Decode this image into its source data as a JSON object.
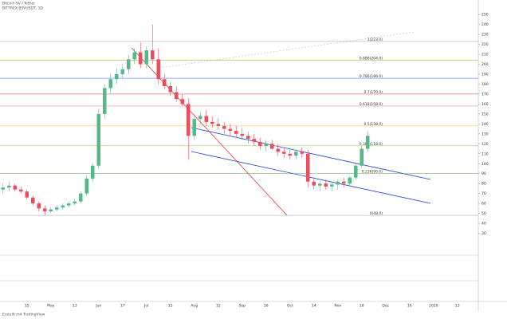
{
  "chart_data": {
    "type": "candlestick",
    "title": "BITTREX:BSVUSDT, 1D",
    "subtitle": "Bitcoin SV / Tether",
    "footer": "Erstellt mit TradingView",
    "up_color": "#53b987",
    "down_color": "#eb4d5c",
    "categories": [
      null,
      null,
      null,
      null,
      "15",
      null,
      null,
      null,
      "May",
      null,
      null,
      null,
      "13",
      null,
      null,
      null,
      "Jun",
      null,
      null,
      null,
      "17",
      null,
      null,
      null,
      "Jul",
      null,
      null,
      null,
      "15",
      null,
      null,
      null,
      "Aug",
      null,
      null,
      null,
      "12",
      null,
      null,
      null,
      "Sep",
      null,
      null,
      null,
      "16",
      null,
      null,
      null,
      "Oct",
      null,
      null,
      null,
      "14",
      null,
      null,
      null,
      "Nov",
      null,
      null,
      null,
      "18",
      null,
      null,
      null,
      "Dec",
      null,
      null,
      null,
      "16",
      null,
      null,
      null,
      "2020",
      null,
      null,
      null,
      "13",
      null,
      null,
      null
    ],
    "open": [
      74,
      76,
      78,
      74,
      72,
      66,
      60,
      55,
      52,
      54,
      56,
      58,
      60,
      62,
      70,
      85,
      98,
      150,
      176,
      185,
      190,
      195,
      205,
      212,
      200,
      214,
      205,
      185,
      178,
      172,
      165,
      160,
      128,
      145,
      148,
      142,
      140,
      138,
      135,
      133,
      130,
      128,
      125,
      122,
      118,
      120,
      115,
      112,
      110,
      108,
      112,
      110,
      82,
      78,
      80,
      77,
      79,
      82,
      80,
      86,
      98,
      115,
      null,
      null,
      null,
      null,
      null,
      null,
      null,
      null,
      null,
      null,
      null,
      null,
      null,
      null,
      null,
      null,
      null,
      null
    ],
    "high": [
      80,
      82,
      80,
      77,
      74,
      68,
      62,
      58,
      56,
      58,
      60,
      62,
      64,
      72,
      88,
      100,
      155,
      180,
      190,
      196,
      200,
      210,
      216,
      222,
      218,
      240,
      216,
      190,
      182,
      178,
      170,
      166,
      150,
      152,
      154,
      148,
      146,
      142,
      140,
      138,
      136,
      132,
      130,
      126,
      124,
      124,
      120,
      116,
      114,
      114,
      116,
      114,
      86,
      82,
      84,
      82,
      84,
      86,
      88,
      100,
      118,
      132,
      null,
      null,
      null,
      null,
      null,
      null,
      null,
      null,
      null,
      null,
      null,
      null,
      null,
      null,
      null,
      null,
      null,
      null
    ],
    "low": [
      70,
      72,
      72,
      70,
      64,
      58,
      52,
      48,
      50,
      52,
      54,
      56,
      58,
      60,
      68,
      82,
      95,
      145,
      170,
      180,
      186,
      190,
      200,
      196,
      196,
      200,
      180,
      175,
      168,
      162,
      158,
      104,
      124,
      140,
      138,
      136,
      134,
      130,
      128,
      126,
      124,
      120,
      118,
      114,
      112,
      114,
      108,
      106,
      104,
      104,
      106,
      76,
      74,
      72,
      74,
      72,
      74,
      76,
      78,
      84,
      96,
      112,
      null,
      null,
      null,
      null,
      null,
      null,
      null,
      null,
      null,
      null,
      null,
      null,
      null,
      null,
      null,
      null,
      null,
      null
    ],
    "close": [
      76,
      78,
      74,
      72,
      66,
      60,
      55,
      52,
      54,
      56,
      58,
      60,
      62,
      70,
      85,
      98,
      150,
      176,
      185,
      190,
      195,
      205,
      212,
      200,
      214,
      205,
      185,
      178,
      172,
      165,
      160,
      128,
      145,
      148,
      142,
      140,
      138,
      135,
      133,
      130,
      128,
      125,
      122,
      118,
      120,
      115,
      112,
      110,
      108,
      112,
      110,
      82,
      78,
      80,
      77,
      79,
      82,
      80,
      86,
      98,
      115,
      128,
      null,
      null,
      null,
      null,
      null,
      null,
      null,
      null,
      null,
      null,
      null,
      null,
      null,
      null,
      null,
      null,
      null,
      null
    ],
    "ylim": [
      20,
      255
    ],
    "yticks": [
      30,
      40,
      50,
      60,
      70,
      80,
      90,
      100,
      110,
      120,
      130,
      140,
      150,
      160,
      170,
      180,
      190,
      200,
      210,
      220,
      230,
      240,
      250
    ],
    "levels": [
      {
        "value": 223,
        "label": "1(223.0)",
        "color": "#999999"
      },
      {
        "value": 204,
        "label": "0.886(204.0)",
        "color": "#9e9d24"
      },
      {
        "value": 186,
        "label": "0.786(186.0)",
        "color": "#2962ff"
      },
      {
        "value": 170,
        "label": "0.7(170.0)",
        "color": "#e53935"
      },
      {
        "value": 158,
        "label": "0.618(158.0)",
        "color": "#e57373"
      },
      {
        "value": 138,
        "label": "0.5(138.0)",
        "color": "#ff9800"
      },
      {
        "value": 118,
        "label": "0.382(118.0)",
        "color": "#8bc34a"
      },
      {
        "value": 90,
        "label": "0.236(90.0)",
        "color": "#4caf50"
      },
      {
        "value": 48,
        "label": "0(48.0)",
        "color": "#999999"
      }
    ]
  }
}
